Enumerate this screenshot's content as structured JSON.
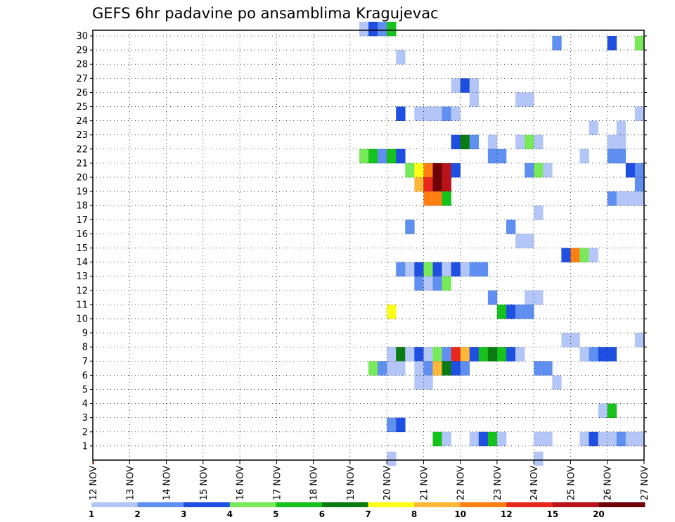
{
  "chart_data": {
    "type": "heatmap",
    "title": "GEFS 6hr padavine po ansamblima Kragujevac",
    "xlabel": "",
    "ylabel": "",
    "x_tick_labels": [
      "12 NOV",
      "13 NOV",
      "14 NOV",
      "15 NOV",
      "16 NOV",
      "17 NOV",
      "18 NOV",
      "19 NOV",
      "20 NOV",
      "21 NOV",
      "22 NOV",
      "23 NOV",
      "24 NOV",
      "25 NOV",
      "26 NOV",
      "27 NOV"
    ],
    "y_tick_labels": [
      "1",
      "2",
      "3",
      "4",
      "5",
      "6",
      "7",
      "8",
      "9",
      "10",
      "11",
      "12",
      "13",
      "14",
      "15",
      "16",
      "17",
      "18",
      "19",
      "20",
      "21",
      "22",
      "23",
      "24",
      "25",
      "26",
      "27",
      "28",
      "29",
      "30"
    ],
    "x_range_days": [
      12,
      27
    ],
    "time_step_hours": 6,
    "y_range_members": [
      0,
      30
    ],
    "grid": "dotted",
    "legend_placement": "bottom",
    "legend": {
      "labels": [
        "1",
        "2",
        "3",
        "4",
        "5",
        "6",
        "7",
        "8",
        "10",
        "12",
        "15",
        "20"
      ],
      "colors": [
        "#b3c6f7",
        "#5f8ff0",
        "#1f4fe0",
        "#78ea5a",
        "#16c21c",
        "#0a7a12",
        "#ffff1a",
        "#ffb73a",
        "#ff7f12",
        "#e8281a",
        "#b8141a",
        "#700008"
      ]
    },
    "cells": [
      {
        "member": 30,
        "day": 19.25,
        "level": 1
      },
      {
        "member": 30,
        "day": 19.5,
        "level": 3
      },
      {
        "member": 30,
        "day": 19.75,
        "level": 2
      },
      {
        "member": 30,
        "day": 20.0,
        "level": 5
      },
      {
        "member": 29,
        "day": 24.5,
        "level": 2
      },
      {
        "member": 29,
        "day": 26.0,
        "level": 3
      },
      {
        "member": 29,
        "day": 26.75,
        "level": 4
      },
      {
        "member": 28,
        "day": 20.25,
        "level": 1
      },
      {
        "member": 26,
        "day": 21.75,
        "level": 1
      },
      {
        "member": 26,
        "day": 22.0,
        "level": 3
      },
      {
        "member": 26,
        "day": 22.25,
        "level": 1
      },
      {
        "member": 25,
        "day": 22.25,
        "level": 1
      },
      {
        "member": 25,
        "day": 23.5,
        "level": 1
      },
      {
        "member": 25,
        "day": 23.75,
        "level": 1
      },
      {
        "member": 24,
        "day": 20.25,
        "level": 3
      },
      {
        "member": 24,
        "day": 20.75,
        "level": 1
      },
      {
        "member": 24,
        "day": 21.0,
        "level": 1
      },
      {
        "member": 24,
        "day": 21.25,
        "level": 1
      },
      {
        "member": 24,
        "day": 21.5,
        "level": 2
      },
      {
        "member": 24,
        "day": 21.75,
        "level": 1
      },
      {
        "member": 24,
        "day": 26.75,
        "level": 1
      },
      {
        "member": 23,
        "day": 25.5,
        "level": 1
      },
      {
        "member": 23,
        "day": 26.25,
        "level": 1
      },
      {
        "member": 22,
        "day": 21.75,
        "level": 3
      },
      {
        "member": 22,
        "day": 22.0,
        "level": 6
      },
      {
        "member": 22,
        "day": 22.25,
        "level": 2
      },
      {
        "member": 22,
        "day": 22.75,
        "level": 1
      },
      {
        "member": 22,
        "day": 23.5,
        "level": 1
      },
      {
        "member": 22,
        "day": 23.75,
        "level": 4
      },
      {
        "member": 22,
        "day": 24.0,
        "level": 1
      },
      {
        "member": 22,
        "day": 26.0,
        "level": 1
      },
      {
        "member": 22,
        "day": 26.25,
        "level": 1
      },
      {
        "member": 21,
        "day": 19.25,
        "level": 4
      },
      {
        "member": 21,
        "day": 19.5,
        "level": 5
      },
      {
        "member": 21,
        "day": 19.75,
        "level": 2
      },
      {
        "member": 21,
        "day": 20.0,
        "level": 5
      },
      {
        "member": 21,
        "day": 20.25,
        "level": 3
      },
      {
        "member": 21,
        "day": 22.75,
        "level": 2
      },
      {
        "member": 21,
        "day": 23.0,
        "level": 2
      },
      {
        "member": 21,
        "day": 25.25,
        "level": 1
      },
      {
        "member": 21,
        "day": 26.0,
        "level": 2
      },
      {
        "member": 21,
        "day": 26.25,
        "level": 2
      },
      {
        "member": 20,
        "day": 20.5,
        "level": 4
      },
      {
        "member": 20,
        "day": 20.75,
        "level": 7
      },
      {
        "member": 20,
        "day": 21.0,
        "level": 9
      },
      {
        "member": 20,
        "day": 21.25,
        "level": 12
      },
      {
        "member": 20,
        "day": 21.5,
        "level": 11
      },
      {
        "member": 20,
        "day": 21.75,
        "level": 3
      },
      {
        "member": 20,
        "day": 23.75,
        "level": 2
      },
      {
        "member": 20,
        "day": 24.0,
        "level": 4
      },
      {
        "member": 20,
        "day": 24.25,
        "level": 1
      },
      {
        "member": 20,
        "day": 26.5,
        "level": 3
      },
      {
        "member": 20,
        "day": 26.75,
        "level": 2
      },
      {
        "member": 19,
        "day": 20.75,
        "level": 8
      },
      {
        "member": 19,
        "day": 21.0,
        "level": 10
      },
      {
        "member": 19,
        "day": 21.25,
        "level": 12
      },
      {
        "member": 19,
        "day": 21.5,
        "level": 11
      },
      {
        "member": 19,
        "day": 26.75,
        "level": 2
      },
      {
        "member": 18,
        "day": 21.0,
        "level": 9
      },
      {
        "member": 18,
        "day": 21.25,
        "level": 9
      },
      {
        "member": 18,
        "day": 21.5,
        "level": 5
      },
      {
        "member": 18,
        "day": 26.0,
        "level": 2
      },
      {
        "member": 18,
        "day": 26.25,
        "level": 1
      },
      {
        "member": 18,
        "day": 26.5,
        "level": 1
      },
      {
        "member": 18,
        "day": 26.75,
        "level": 1
      },
      {
        "member": 17,
        "day": 24.0,
        "level": 1
      },
      {
        "member": 16,
        "day": 20.5,
        "level": 2
      },
      {
        "member": 16,
        "day": 23.25,
        "level": 2
      },
      {
        "member": 15,
        "day": 23.5,
        "level": 1
      },
      {
        "member": 15,
        "day": 23.75,
        "level": 1
      },
      {
        "member": 14,
        "day": 24.75,
        "level": 3
      },
      {
        "member": 14,
        "day": 25.0,
        "level": 9
      },
      {
        "member": 14,
        "day": 25.25,
        "level": 4
      },
      {
        "member": 14,
        "day": 25.5,
        "level": 1
      },
      {
        "member": 13,
        "day": 20.25,
        "level": 2
      },
      {
        "member": 13,
        "day": 20.5,
        "level": 1
      },
      {
        "member": 13,
        "day": 20.75,
        "level": 3
      },
      {
        "member": 13,
        "day": 21.0,
        "level": 4
      },
      {
        "member": 13,
        "day": 21.25,
        "level": 3
      },
      {
        "member": 13,
        "day": 21.5,
        "level": 1
      },
      {
        "member": 13,
        "day": 21.75,
        "level": 3
      },
      {
        "member": 13,
        "day": 22.0,
        "level": 1
      },
      {
        "member": 13,
        "day": 22.25,
        "level": 2
      },
      {
        "member": 13,
        "day": 22.5,
        "level": 2
      },
      {
        "member": 12,
        "day": 20.75,
        "level": 2
      },
      {
        "member": 12,
        "day": 21.0,
        "level": 1
      },
      {
        "member": 12,
        "day": 21.25,
        "level": 2
      },
      {
        "member": 12,
        "day": 21.5,
        "level": 4
      },
      {
        "member": 11,
        "day": 22.75,
        "level": 2
      },
      {
        "member": 11,
        "day": 23.75,
        "level": 1
      },
      {
        "member": 11,
        "day": 24.0,
        "level": 1
      },
      {
        "member": 10,
        "day": 20.0,
        "level": 7
      },
      {
        "member": 10,
        "day": 23.0,
        "level": 5
      },
      {
        "member": 10,
        "day": 23.25,
        "level": 3
      },
      {
        "member": 10,
        "day": 23.5,
        "level": 2
      },
      {
        "member": 10,
        "day": 23.75,
        "level": 2
      },
      {
        "member": 8,
        "day": 24.75,
        "level": 1
      },
      {
        "member": 8,
        "day": 25.0,
        "level": 1
      },
      {
        "member": 8,
        "day": 26.75,
        "level": 1
      },
      {
        "member": 7,
        "day": 20.0,
        "level": 1
      },
      {
        "member": 7,
        "day": 20.25,
        "level": 6
      },
      {
        "member": 7,
        "day": 20.5,
        "level": 1
      },
      {
        "member": 7,
        "day": 20.75,
        "level": 3
      },
      {
        "member": 7,
        "day": 21.0,
        "level": 1
      },
      {
        "member": 7,
        "day": 21.25,
        "level": 4
      },
      {
        "member": 7,
        "day": 21.5,
        "level": 2
      },
      {
        "member": 7,
        "day": 21.75,
        "level": 10
      },
      {
        "member": 7,
        "day": 22.0,
        "level": 8
      },
      {
        "member": 7,
        "day": 22.25,
        "level": 3
      },
      {
        "member": 7,
        "day": 22.5,
        "level": 5
      },
      {
        "member": 7,
        "day": 22.75,
        "level": 6
      },
      {
        "member": 7,
        "day": 23.0,
        "level": 5
      },
      {
        "member": 7,
        "day": 23.25,
        "level": 3
      },
      {
        "member": 7,
        "day": 23.5,
        "level": 1
      },
      {
        "member": 7,
        "day": 25.25,
        "level": 1
      },
      {
        "member": 7,
        "day": 25.5,
        "level": 2
      },
      {
        "member": 7,
        "day": 25.75,
        "level": 3
      },
      {
        "member": 7,
        "day": 26.0,
        "level": 3
      },
      {
        "member": 6,
        "day": 19.5,
        "level": 4
      },
      {
        "member": 6,
        "day": 19.75,
        "level": 2
      },
      {
        "member": 6,
        "day": 20.0,
        "level": 1
      },
      {
        "member": 6,
        "day": 20.25,
        "level": 1
      },
      {
        "member": 6,
        "day": 20.75,
        "level": 1
      },
      {
        "member": 6,
        "day": 21.0,
        "level": 2
      },
      {
        "member": 6,
        "day": 21.25,
        "level": 8
      },
      {
        "member": 6,
        "day": 21.5,
        "level": 6
      },
      {
        "member": 6,
        "day": 21.75,
        "level": 3
      },
      {
        "member": 6,
        "day": 22.0,
        "level": 2
      },
      {
        "member": 6,
        "day": 24.0,
        "level": 2
      },
      {
        "member": 6,
        "day": 24.25,
        "level": 2
      },
      {
        "member": 5,
        "day": 20.75,
        "level": 1
      },
      {
        "member": 5,
        "day": 21.0,
        "level": 1
      },
      {
        "member": 5,
        "day": 24.5,
        "level": 1
      },
      {
        "member": 3,
        "day": 25.75,
        "level": 1
      },
      {
        "member": 3,
        "day": 26.0,
        "level": 5
      },
      {
        "member": 2,
        "day": 20.0,
        "level": 2
      },
      {
        "member": 2,
        "day": 20.25,
        "level": 3
      },
      {
        "member": 1,
        "day": 21.25,
        "level": 5
      },
      {
        "member": 1,
        "day": 21.5,
        "level": 1
      },
      {
        "member": 1,
        "day": 22.25,
        "level": 1
      },
      {
        "member": 1,
        "day": 22.5,
        "level": 3
      },
      {
        "member": 1,
        "day": 22.75,
        "level": 5
      },
      {
        "member": 1,
        "day": 23.0,
        "level": 1
      },
      {
        "member": 1,
        "day": 24.0,
        "level": 1
      },
      {
        "member": 1,
        "day": 24.25,
        "level": 1
      },
      {
        "member": 1,
        "day": 25.25,
        "level": 1
      },
      {
        "member": 1,
        "day": 25.5,
        "level": 3
      },
      {
        "member": 1,
        "day": 25.75,
        "level": 1
      },
      {
        "member": 1,
        "day": 26.0,
        "level": 1
      },
      {
        "member": 1,
        "day": 26.25,
        "level": 2
      },
      {
        "member": 1,
        "day": 26.5,
        "level": 1
      },
      {
        "member": 1,
        "day": 26.75,
        "level": 1
      },
      {
        "member": 0,
        "day": 20.0,
        "level": 1
      },
      {
        "member": 0,
        "day": 24.0,
        "level": 1
      }
    ]
  }
}
